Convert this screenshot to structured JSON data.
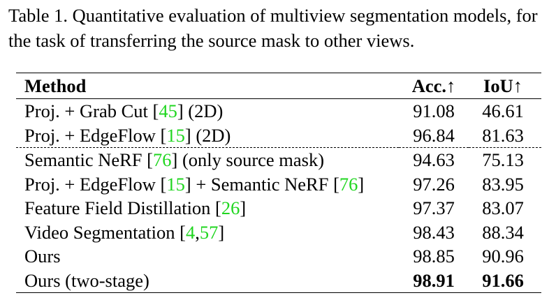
{
  "caption": "Table 1. Quantitative evaluation of multiview segmentation models, for the task of transferring the source mask to other views.",
  "table": {
    "headers": {
      "method": "Method",
      "acc": "Acc.↑",
      "iou": "IoU↑"
    },
    "rows": [
      {
        "m1": "Proj. + Grab Cut [",
        "r1": "45",
        "m2": "] (2D)",
        "r2": "",
        "m3": "",
        "acc": "91.08",
        "iou": "46.61"
      },
      {
        "m1": "Proj. + EdgeFlow [",
        "r1": "15",
        "m2": "] (2D)",
        "r2": "",
        "m3": "",
        "acc": "96.84",
        "iou": "81.63"
      },
      {
        "m1": "Semantic NeRF [",
        "r1": "76",
        "m2": "] (only source mask)",
        "r2": "",
        "m3": "",
        "acc": "94.63",
        "iou": "75.13"
      },
      {
        "m1": "Proj. + EdgeFlow [",
        "r1": "15",
        "m2": "] + Semantic NeRF [",
        "r2": "76",
        "m3": "]",
        "acc": "97.26",
        "iou": "83.95"
      },
      {
        "m1": "Feature Field Distillation [",
        "r1": "26",
        "m2": "]",
        "r2": "",
        "m3": "",
        "acc": "97.37",
        "iou": "83.07"
      },
      {
        "m1": "Video Segmentation [",
        "r1": "4",
        "m2": ",",
        "r2": "57",
        "m3": "]",
        "acc": "98.43",
        "iou": "88.34"
      },
      {
        "m1": "Ours",
        "r1": "",
        "m2": "",
        "r2": "",
        "m3": "",
        "acc": "98.85",
        "iou": "90.96"
      },
      {
        "m1": "Ours (two-stage)",
        "r1": "",
        "m2": "",
        "r2": "",
        "m3": "",
        "acc": "98.91",
        "iou": "91.66"
      }
    ]
  },
  "colors": {
    "reference_link": "#1fd61f",
    "text": "#000000"
  }
}
